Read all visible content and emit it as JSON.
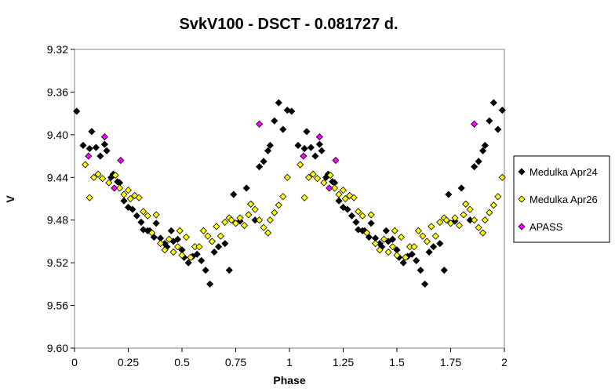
{
  "chart_data": {
    "type": "scatter",
    "title": "SvkV100  - DSCT - 0.081727  d.",
    "xlabel": "Phase",
    "ylabel": "V",
    "xlim": [
      0,
      2
    ],
    "ylim": [
      9.32,
      9.6
    ],
    "y_reversed": true,
    "grid": "none",
    "legend_position": "right",
    "x_ticks": [
      "0",
      "0.25",
      "0.5",
      "0.75",
      "1",
      "1.25",
      "1.5",
      "1.75",
      "2"
    ],
    "y_ticks": [
      "9.32",
      "9.36",
      "9.40",
      "9.44",
      "9.48",
      "9.52",
      "9.56",
      "9.60"
    ],
    "series": [
      {
        "name": "Medulka Apr24",
        "color": "#000000",
        "marker": "diamond",
        "points": [
          [
            0.01,
            9.378
          ],
          [
            0.04,
            9.41
          ],
          [
            0.07,
            9.413
          ],
          [
            0.08,
            9.397
          ],
          [
            0.1,
            9.412
          ],
          [
            0.12,
            9.42
          ],
          [
            0.14,
            9.409
          ],
          [
            0.15,
            9.415
          ],
          [
            0.17,
            9.44
          ],
          [
            0.18,
            9.437
          ],
          [
            0.2,
            9.444
          ],
          [
            0.21,
            9.445
          ],
          [
            0.23,
            9.462
          ],
          [
            0.25,
            9.468
          ],
          [
            0.27,
            9.47
          ],
          [
            0.29,
            9.476
          ],
          [
            0.31,
            9.482
          ],
          [
            0.32,
            9.489
          ],
          [
            0.34,
            9.49
          ],
          [
            0.35,
            9.49
          ],
          [
            0.37,
            9.496
          ],
          [
            0.38,
            9.483
          ],
          [
            0.4,
            9.497
          ],
          [
            0.42,
            9.502
          ],
          [
            0.43,
            9.505
          ],
          [
            0.45,
            9.49
          ],
          [
            0.46,
            9.5
          ],
          [
            0.48,
            9.498
          ],
          [
            0.5,
            9.508
          ],
          [
            0.51,
            9.515
          ],
          [
            0.53,
            9.52
          ],
          [
            0.55,
            9.514
          ],
          [
            0.57,
            9.512
          ],
          [
            0.59,
            9.518
          ],
          [
            0.61,
            9.527
          ],
          [
            0.63,
            9.54
          ],
          [
            0.65,
            9.51
          ],
          [
            0.67,
            9.505
          ],
          [
            0.7,
            9.502
          ],
          [
            0.72,
            9.527
          ],
          [
            0.74,
            9.456
          ],
          [
            0.77,
            9.481
          ],
          [
            0.8,
            9.45
          ],
          [
            0.82,
            9.465
          ],
          [
            0.84,
            9.48
          ],
          [
            0.86,
            9.43
          ],
          [
            0.88,
            9.425
          ],
          [
            0.9,
            9.415
          ],
          [
            0.91,
            9.41
          ],
          [
            0.93,
            9.387
          ],
          [
            0.95,
            9.37
          ],
          [
            0.97,
            9.395
          ],
          [
            0.99,
            9.377
          ],
          [
            1.01,
            9.378
          ],
          [
            1.04,
            9.41
          ],
          [
            1.07,
            9.413
          ],
          [
            1.08,
            9.397
          ],
          [
            1.1,
            9.412
          ],
          [
            1.12,
            9.42
          ],
          [
            1.14,
            9.409
          ],
          [
            1.15,
            9.415
          ],
          [
            1.17,
            9.44
          ],
          [
            1.18,
            9.437
          ],
          [
            1.2,
            9.444
          ],
          [
            1.21,
            9.445
          ],
          [
            1.23,
            9.462
          ],
          [
            1.25,
            9.468
          ],
          [
            1.27,
            9.47
          ],
          [
            1.29,
            9.476
          ],
          [
            1.31,
            9.482
          ],
          [
            1.32,
            9.489
          ],
          [
            1.34,
            9.49
          ],
          [
            1.35,
            9.49
          ],
          [
            1.37,
            9.496
          ],
          [
            1.38,
            9.483
          ],
          [
            1.4,
            9.497
          ],
          [
            1.42,
            9.502
          ],
          [
            1.43,
            9.505
          ],
          [
            1.45,
            9.49
          ],
          [
            1.46,
            9.5
          ],
          [
            1.48,
            9.498
          ],
          [
            1.5,
            9.508
          ],
          [
            1.51,
            9.515
          ],
          [
            1.53,
            9.52
          ],
          [
            1.55,
            9.514
          ],
          [
            1.57,
            9.512
          ],
          [
            1.59,
            9.518
          ],
          [
            1.61,
            9.527
          ],
          [
            1.63,
            9.54
          ],
          [
            1.65,
            9.51
          ],
          [
            1.67,
            9.505
          ],
          [
            1.7,
            9.502
          ],
          [
            1.72,
            9.527
          ],
          [
            1.74,
            9.456
          ],
          [
            1.77,
            9.481
          ],
          [
            1.8,
            9.45
          ],
          [
            1.82,
            9.465
          ],
          [
            1.84,
            9.48
          ],
          [
            1.86,
            9.43
          ],
          [
            1.88,
            9.425
          ],
          [
            1.9,
            9.415
          ],
          [
            1.91,
            9.41
          ],
          [
            1.93,
            9.387
          ],
          [
            1.95,
            9.37
          ],
          [
            1.97,
            9.395
          ],
          [
            1.99,
            9.377
          ]
        ]
      },
      {
        "name": "Medulka Apr26",
        "color": "#ffff00",
        "marker": "diamond",
        "points": [
          [
            0.05,
            9.428
          ],
          [
            0.07,
            9.459
          ],
          [
            0.09,
            9.44
          ],
          [
            0.11,
            9.437
          ],
          [
            0.13,
            9.441
          ],
          [
            0.16,
            9.445
          ],
          [
            0.19,
            9.438
          ],
          [
            0.21,
            9.45
          ],
          [
            0.23,
            9.456
          ],
          [
            0.25,
            9.452
          ],
          [
            0.26,
            9.46
          ],
          [
            0.28,
            9.457
          ],
          [
            0.3,
            9.459
          ],
          [
            0.32,
            9.472
          ],
          [
            0.34,
            9.476
          ],
          [
            0.36,
            9.492
          ],
          [
            0.38,
            9.475
          ],
          [
            0.4,
            9.502
          ],
          [
            0.42,
            9.508
          ],
          [
            0.44,
            9.498
          ],
          [
            0.46,
            9.51
          ],
          [
            0.48,
            9.505
          ],
          [
            0.49,
            9.49
          ],
          [
            0.5,
            9.513
          ],
          [
            0.52,
            9.496
          ],
          [
            0.54,
            9.515
          ],
          [
            0.56,
            9.505
          ],
          [
            0.58,
            9.505
          ],
          [
            0.6,
            9.49
          ],
          [
            0.62,
            9.495
          ],
          [
            0.64,
            9.5
          ],
          [
            0.66,
            9.486
          ],
          [
            0.68,
            9.495
          ],
          [
            0.7,
            9.482
          ],
          [
            0.72,
            9.478
          ],
          [
            0.73,
            9.48
          ],
          [
            0.75,
            9.483
          ],
          [
            0.77,
            9.478
          ],
          [
            0.79,
            9.485
          ],
          [
            0.81,
            9.475
          ],
          [
            0.82,
            9.465
          ],
          [
            0.84,
            9.47
          ],
          [
            0.86,
            9.48
          ],
          [
            0.88,
            9.487
          ],
          [
            0.9,
            9.492
          ],
          [
            0.91,
            9.48
          ],
          [
            0.93,
            9.473
          ],
          [
            0.95,
            9.466
          ],
          [
            0.97,
            9.458
          ],
          [
            0.99,
            9.44
          ],
          [
            1.05,
            9.428
          ],
          [
            1.07,
            9.459
          ],
          [
            1.09,
            9.44
          ],
          [
            1.11,
            9.437
          ],
          [
            1.13,
            9.441
          ],
          [
            1.16,
            9.445
          ],
          [
            1.19,
            9.438
          ],
          [
            1.21,
            9.45
          ],
          [
            1.23,
            9.456
          ],
          [
            1.25,
            9.452
          ],
          [
            1.26,
            9.46
          ],
          [
            1.28,
            9.457
          ],
          [
            1.3,
            9.459
          ],
          [
            1.32,
            9.472
          ],
          [
            1.34,
            9.476
          ],
          [
            1.36,
            9.492
          ],
          [
            1.38,
            9.475
          ],
          [
            1.4,
            9.502
          ],
          [
            1.42,
            9.508
          ],
          [
            1.44,
            9.498
          ],
          [
            1.46,
            9.51
          ],
          [
            1.48,
            9.505
          ],
          [
            1.49,
            9.49
          ],
          [
            1.5,
            9.513
          ],
          [
            1.52,
            9.496
          ],
          [
            1.54,
            9.515
          ],
          [
            1.56,
            9.505
          ],
          [
            1.58,
            9.505
          ],
          [
            1.6,
            9.49
          ],
          [
            1.62,
            9.495
          ],
          [
            1.64,
            9.5
          ],
          [
            1.66,
            9.486
          ],
          [
            1.68,
            9.495
          ],
          [
            1.7,
            9.482
          ],
          [
            1.72,
            9.478
          ],
          [
            1.73,
            9.48
          ],
          [
            1.75,
            9.483
          ],
          [
            1.77,
            9.478
          ],
          [
            1.79,
            9.485
          ],
          [
            1.81,
            9.475
          ],
          [
            1.82,
            9.465
          ],
          [
            1.84,
            9.47
          ],
          [
            1.86,
            9.48
          ],
          [
            1.88,
            9.487
          ],
          [
            1.9,
            9.492
          ],
          [
            1.91,
            9.48
          ],
          [
            1.93,
            9.473
          ],
          [
            1.95,
            9.466
          ],
          [
            1.97,
            9.458
          ],
          [
            1.99,
            9.44
          ]
        ]
      },
      {
        "name": "APASS",
        "color": "#ff00ff",
        "marker": "diamond",
        "points": [
          [
            0.065,
            9.42
          ],
          [
            0.14,
            9.402
          ],
          [
            0.185,
            9.45
          ],
          [
            0.215,
            9.424
          ],
          [
            0.86,
            9.39
          ],
          [
            1.065,
            9.42
          ],
          [
            1.14,
            9.402
          ],
          [
            1.185,
            9.45
          ],
          [
            1.215,
            9.424
          ],
          [
            1.86,
            9.39
          ]
        ]
      }
    ]
  }
}
